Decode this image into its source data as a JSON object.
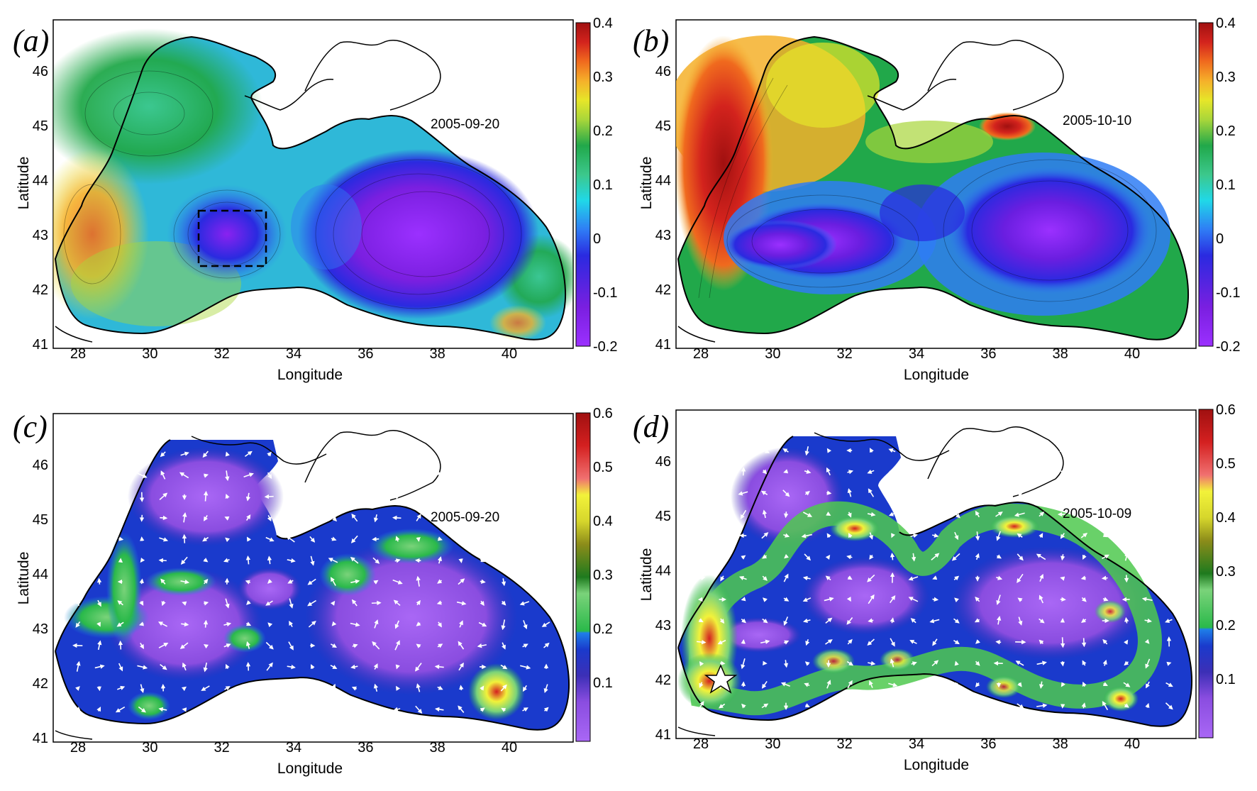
{
  "figure": {
    "panels": [
      {
        "id": "a",
        "label": "(a)",
        "date": "2005-09-20",
        "xlabel": "Longitude",
        "ylabel": "Latitude",
        "xticks": [
          "28",
          "30",
          "32",
          "34",
          "36",
          "38",
          "40"
        ],
        "yticks": [
          "41",
          "42",
          "43",
          "44",
          "45",
          "46"
        ],
        "colorbar": {
          "ticks": [
            "0.4",
            "0.3",
            "0.2",
            "0.1",
            "0",
            "-0.1",
            "-0.2"
          ],
          "range": [
            -0.2,
            0.4
          ],
          "palette": [
            "#9b30ff",
            "#7a1fe0",
            "#2a2ae0",
            "#2f7cf5",
            "#20d8e8",
            "#3cc88c",
            "#21a84a",
            "#a8d63a",
            "#e6e629",
            "#f5b02a",
            "#f06a1e",
            "#d3231d",
            "#a01010"
          ]
        },
        "has_selection_box": true,
        "has_vectors": false
      },
      {
        "id": "b",
        "label": "(b)",
        "date": "2005-10-10",
        "xlabel": "Longitude",
        "ylabel": "Latitude",
        "xticks": [
          "28",
          "30",
          "32",
          "34",
          "36",
          "38",
          "40"
        ],
        "yticks": [
          "41",
          "42",
          "43",
          "44",
          "45",
          "46"
        ],
        "colorbar": {
          "ticks": [
            "0.4",
            "0.3",
            "0.2",
            "0.1",
            "0",
            "-0.1",
            "-0.2"
          ],
          "range": [
            -0.2,
            0.4
          ],
          "palette": [
            "#9b30ff",
            "#7a1fe0",
            "#2a2ae0",
            "#2f7cf5",
            "#20d8e8",
            "#3cc88c",
            "#21a84a",
            "#a8d63a",
            "#e6e629",
            "#f5b02a",
            "#f06a1e",
            "#d3231d",
            "#a01010"
          ]
        },
        "has_selection_box": false,
        "has_vectors": false
      },
      {
        "id": "c",
        "label": "(c)",
        "date": "2005-09-20",
        "xlabel": "Longitude",
        "ylabel": "Latitude",
        "xticks": [
          "28",
          "30",
          "32",
          "34",
          "36",
          "38",
          "40"
        ],
        "yticks": [
          "41",
          "42",
          "43",
          "44",
          "45",
          "46"
        ],
        "colorbar": {
          "ticks": [
            "0.6",
            "0.5",
            "0.4",
            "0.3",
            "0.2",
            "0.1"
          ],
          "range": [
            0,
            0.6
          ],
          "palette": [
            "#a967f5",
            "#8a4de0",
            "#3c2fb6",
            "#1a3acc",
            "#1e7fe8",
            "#2ab94a",
            "#7ad37a",
            "#1e7a1e",
            "#8c8c1a",
            "#d6d62c",
            "#f2f23a",
            "#f07070",
            "#d42020",
            "#a01010"
          ]
        },
        "has_selection_box": false,
        "has_vectors": true
      },
      {
        "id": "d",
        "label": "(d)",
        "date": "2005-10-09",
        "xlabel": "Longitude",
        "ylabel": "Latitude",
        "xticks": [
          "28",
          "30",
          "32",
          "34",
          "36",
          "38",
          "40"
        ],
        "yticks": [
          "41",
          "42",
          "43",
          "44",
          "45",
          "46"
        ],
        "colorbar": {
          "ticks": [
            "0.6",
            "0.5",
            "0.4",
            "0.3",
            "0.2",
            "0.1"
          ],
          "range": [
            0,
            0.6
          ],
          "palette": [
            "#a967f5",
            "#8a4de0",
            "#3c2fb6",
            "#1a3acc",
            "#1e7fe8",
            "#2ab94a",
            "#7ad37a",
            "#1e7a1e",
            "#8c8c1a",
            "#d6d62c",
            "#f2f23a",
            "#f07070",
            "#d42020",
            "#a01010"
          ]
        },
        "has_selection_box": false,
        "has_vectors": true,
        "has_star_marker": true
      }
    ]
  }
}
